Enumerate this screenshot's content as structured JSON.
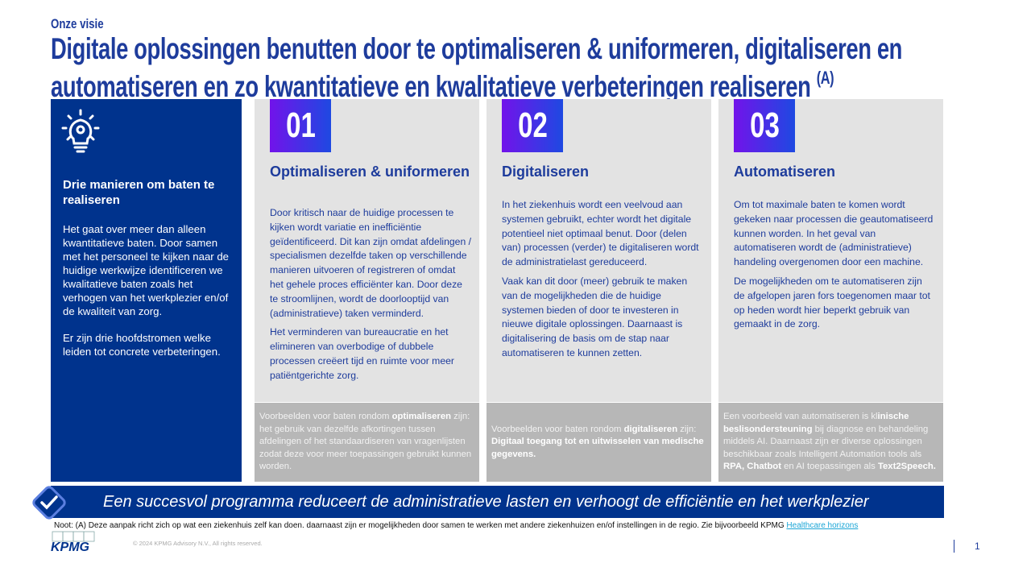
{
  "header": {
    "kicker": "Onze visie",
    "title_line1": "Digitale oplossingen benutten door te optimaliseren & uniformeren, digitaliseren en",
    "title_line2": "automatiseren en zo kwantitatieve en kwalitatieve verbeteringen realiseren",
    "title_note": "(A)"
  },
  "left_panel": {
    "icon": "lightbulb-gear-icon",
    "heading": "Drie manieren om baten te realiseren",
    "p1": "Het gaat over meer dan alleen kwantitatieve baten. Door samen met het personeel te kijken naar de huidige werkwijze identificeren we kwalitatieve baten zoals het verhogen van het werkplezier en/of de kwaliteit van zorg.",
    "p2": "Er zijn drie hoofdstromen welke leiden tot concrete verbeteringen."
  },
  "columns": [
    {
      "number": "01",
      "heading": "Optimaliseren & uniformeren",
      "p1": "Door kritisch naar de huidige processen te kijken wordt variatie en inefficiëntie geïdentificeerd. Dit kan zijn omdat afdelingen / specialismen dezelfde taken op verschillende manieren uitvoeren of registreren of omdat het gehele proces efficiënter kan. Door deze te stroomlijnen, wordt de doorlooptijd van (administratieve) taken verminderd.",
      "p2": "Het verminderen van bureaucratie en het elimineren van overbodige of dubbele processen creëert tijd en ruimte voor meer patiëntgerichte zorg.",
      "example": [
        {
          "t": "Voorbeelden voor baten rondom "
        },
        {
          "b": "optimaliseren"
        },
        {
          "t": " zijn: het gebruik van dezelfde afkortingen tussen afdelingen of het standaardiseren van vragenlijsten zodat deze voor meer toepassingen gebruikt kunnen worden."
        }
      ]
    },
    {
      "number": "02",
      "heading": "Digitaliseren",
      "p1": "In het ziekenhuis wordt een veelvoud aan systemen gebruikt, echter wordt het digitale potentieel niet optimaal benut. Door (delen van) processen (verder) te digitaliseren wordt de administratielast gereduceerd.",
      "p2": "Vaak kan dit door (meer) gebruik te maken van de mogelijkheden die de huidige systemen bieden of door te investeren in nieuwe digitale oplossingen. Daarnaast is digitalisering de basis om de stap naar automatiseren te kunnen zetten.",
      "example": [
        {
          "t": "Voorbeelden voor baten rondom "
        },
        {
          "b": "digitaliseren"
        },
        {
          "t": " zijn: "
        },
        {
          "b": "Digitaal toegang tot en uitwisselen van medische gegevens."
        }
      ]
    },
    {
      "number": "03",
      "heading": "Automatiseren",
      "p1": "Om tot maximale baten te komen wordt gekeken naar processen die geautomatiseerd kunnen worden. In het geval van automatiseren wordt de (administratieve) handeling overgenomen door een machine.",
      "p2": "De mogelijkheden om te automatiseren zijn de afgelopen jaren fors toegenomen maar tot op heden wordt hier beperkt gebruik van gemaakt in de zorg.",
      "example": [
        {
          "t": "Een voorbeeld van automatiseren is kl"
        },
        {
          "b": "inische beslisondersteuning"
        },
        {
          "t": " bij diagnose en behandeling middels AI. Daarnaast zijn er diverse oplossingen beschikbaar zoals Intelligent Automation tools als "
        },
        {
          "b": "RPA, Chatbot"
        },
        {
          "t": " en AI toepassingen als "
        },
        {
          "b": "Text2Speech."
        }
      ]
    }
  ],
  "banner": {
    "text": "Een succesvol programma reduceert de administratieve lasten en verhoogt de efficiëntie en het werkplezier",
    "icon": "checkmark-icon"
  },
  "footer": {
    "note": "Noot: (A) Deze aanpak richt zich op wat een ziekenhuis zelf kan doen. daarnaast zijn er mogelijkheden door samen te werken met andere ziekenhuizen en/of instellingen in de regio. Zie bijvoorbeeld KPMG ",
    "link": "Healthcare horizons",
    "logo": "KPMG",
    "copyright": "© 2024 KPMG Advisory N.V., All rights reserved.",
    "page": "1"
  },
  "colors": {
    "navy": "#00338d",
    "title": "#1e3c9c",
    "gradient_start": "#7213ea",
    "gradient_end": "#1e49e2"
  }
}
